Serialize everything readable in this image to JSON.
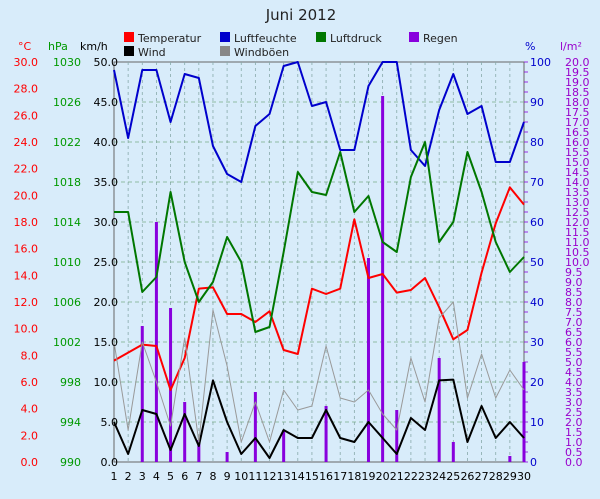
{
  "chart_data": {
    "type": "line",
    "title": "Juni 2012",
    "x": [
      1,
      2,
      3,
      4,
      5,
      6,
      7,
      8,
      9,
      10,
      11,
      12,
      13,
      14,
      15,
      16,
      17,
      18,
      19,
      20,
      21,
      22,
      23,
      24,
      25,
      26,
      27,
      28,
      29,
      30
    ],
    "axes": {
      "temp": {
        "label": "°C",
        "color": "#ff0000",
        "ticks": [
          "0.0",
          "2.0",
          "4.0",
          "6.0",
          "8.0",
          "10.0",
          "12.0",
          "14.0",
          "16.0",
          "18.0",
          "20.0",
          "22.0",
          "24.0",
          "26.0",
          "28.0",
          "30.0"
        ]
      },
      "press": {
        "label": "hPa",
        "color": "#009900",
        "ticks": [
          "990",
          "994",
          "998",
          "1002",
          "1006",
          "1010",
          "1014",
          "1018",
          "1022",
          "1026",
          "1030"
        ]
      },
      "wind": {
        "label": "km/h",
        "color": "#000000",
        "ticks": [
          "0.0",
          "5.0",
          "10.0",
          "15.0",
          "20.0",
          "25.0",
          "30.0",
          "35.0",
          "40.0",
          "45.0",
          "50.0"
        ]
      },
      "hum": {
        "label": "%",
        "color": "#0000cc",
        "ticks": [
          "0",
          "10",
          "20",
          "30",
          "40",
          "50",
          "60",
          "70",
          "80",
          "90",
          "100"
        ]
      },
      "rain": {
        "label": "l/m²",
        "color": "#9900cc",
        "ticks": [
          "0.0",
          "0.5",
          "1.0",
          "1.5",
          "2.0",
          "2.5",
          "3.0",
          "3.5",
          "4.0",
          "4.5",
          "5.0",
          "5.5",
          "6.0",
          "6.5",
          "7.0",
          "7.5",
          "8.0",
          "8.5",
          "9.0",
          "9.5",
          "10.0",
          "10.5",
          "11.0",
          "11.5",
          "12.0",
          "12.5",
          "13.0",
          "13.5",
          "14.0",
          "14.5",
          "15.0",
          "15.5",
          "16.0",
          "16.5",
          "17.0",
          "17.5",
          "18.0",
          "18.5",
          "19.0",
          "19.5",
          "20.0"
        ]
      }
    },
    "legend": [
      "Temperatur",
      "Wind",
      "Luftfeuchte",
      "Windböen",
      "Luftdruck",
      "Regen"
    ],
    "series": [
      {
        "name": "Temperatur",
        "axis": "temp",
        "color": "#ff0000",
        "values": [
          7.6,
          8.2,
          8.8,
          8.7,
          5.4,
          7.8,
          13.0,
          13.1,
          11.1,
          11.1,
          10.5,
          11.3,
          8.4,
          8.1,
          13.0,
          12.6,
          13.0,
          18.2,
          13.8,
          14.1,
          12.7,
          12.9,
          13.8,
          11.6,
          9.2,
          9.9,
          14.2,
          17.9,
          20.6,
          19.3
        ]
      },
      {
        "name": "Luftfeuchte",
        "axis": "hum",
        "color": "#0000cc",
        "values": [
          98,
          81,
          98,
          98,
          85,
          97,
          96,
          79,
          72,
          70,
          84,
          87,
          99,
          100,
          89,
          90,
          78,
          78,
          94,
          100,
          100,
          78,
          74,
          88,
          97,
          87,
          89,
          75,
          75,
          85
        ]
      },
      {
        "name": "Luftdruck",
        "axis": "press",
        "color": "#007700",
        "values": [
          1015,
          1015,
          1007,
          1008.5,
          1017,
          1010,
          1006,
          1008,
          1012.5,
          1010,
          1003,
          1003.5,
          1011,
          1019,
          1017,
          1016.7,
          1021,
          1015,
          1016.6,
          1012,
          1011,
          1018.5,
          1022,
          1012,
          1014,
          1021,
          1017,
          1012,
          1009,
          1010.5
        ]
      },
      {
        "name": "Wind",
        "axis": "wind",
        "color": "#000000",
        "values": [
          5,
          1,
          6.5,
          6,
          1.5,
          6,
          2,
          10.2,
          5,
          1,
          3,
          0.5,
          4,
          3,
          3,
          6.5,
          3,
          2.5,
          5,
          3,
          1,
          5.5,
          4,
          10.2,
          10.3,
          2.5,
          7,
          3,
          5,
          3
        ]
      },
      {
        "name": "Windböen",
        "axis": "wind",
        "color": "#999999",
        "values": [
          15,
          4,
          15,
          10,
          4.5,
          15.5,
          2.5,
          19,
          12,
          2.5,
          7.5,
          2.5,
          9,
          6.5,
          7,
          14.5,
          8,
          7.5,
          9,
          6,
          4,
          13,
          7.5,
          18,
          20,
          8,
          13.5,
          8,
          11.5,
          9
        ]
      },
      {
        "name": "Regen",
        "axis": "rain",
        "type": "bar",
        "color": "#8800dd",
        "values": [
          0,
          0,
          6.8,
          12,
          7.7,
          3,
          1.1,
          0,
          0.5,
          0,
          3.5,
          0,
          1.6,
          0,
          0,
          2.8,
          0,
          0,
          10.2,
          18.3,
          2.6,
          0,
          0,
          5.2,
          1,
          0,
          0,
          0,
          0.3,
          5
        ]
      }
    ]
  }
}
